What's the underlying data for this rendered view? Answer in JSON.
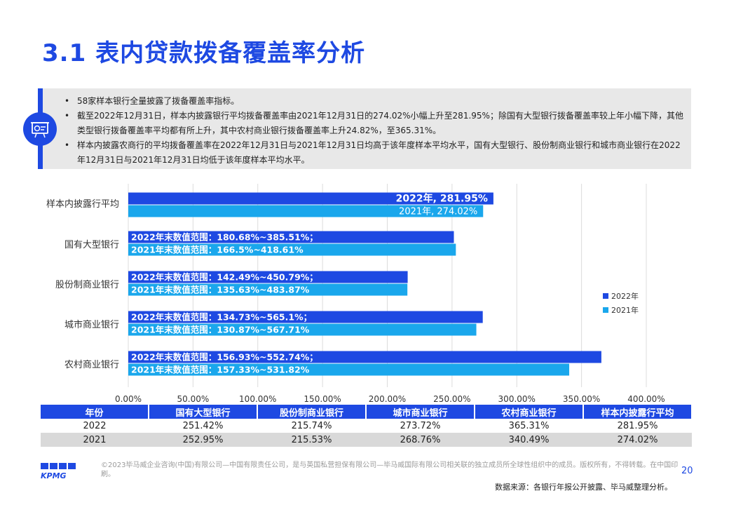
{
  "page": {
    "title": "3.1 表内贷款拨备覆盖率分析",
    "page_number": "20",
    "source": "数据来源：各银行年报公开披露、毕马威整理分析。",
    "copyright": "©2023毕马威企业咨询(中国)有限公司—中国有限责任公司，是与英国私营担保有限公司—毕马威国际有限公司相关联的独立成员所全球性组织中的成员。版权所有，不得转载。在中国印刷。",
    "logo_text": "KPMG"
  },
  "summary": {
    "bullets": [
      "58家样本银行全量披露了拨备覆盖率指标。",
      "截至2022年12月31日，样本内披露银行平均拨备覆盖率由2021年12月31日的274.02%小幅上升至281.95%；除国有大型银行拨备覆盖率较上年小幅下降，其他类型银行拨备覆盖率平均都有所上升，其中农村商业银行拨备覆盖率上升24.82%，至365.31%。",
      "样本内披露农商行的平均拨备覆盖率在2022年12月31日与2021年12月31日均高于该年度样本平均水平，国有大型银行、股份制商业银行和城市商业银行在2022年12月31日与2021年12月31日均低于该年度样本平均水平。"
    ],
    "icon": "presentation-board-icon"
  },
  "colors": {
    "accent": "#1e49e2",
    "series_2022": "#1e49e2",
    "series_2021": "#1aa7ec",
    "table_row_alt": "#d9d9d9"
  },
  "chart_data": {
    "type": "bar",
    "orientation": "horizontal",
    "categories": [
      "样本内披露行平均",
      "国有大型银行",
      "股份制商业银行",
      "城市商业银行",
      "农村商业银行"
    ],
    "series": [
      {
        "name": "2022年",
        "values": [
          281.95,
          251.42,
          215.74,
          273.72,
          365.31
        ],
        "labels": [
          "2022年, 281.95%",
          "2022年末数值范围：180.68%~385.51%；",
          "2022年末数值范围：142.49%~450.79%；",
          "2022年末数值范围：134.73%~565.1%；",
          "2022年末数值范围：156.93%~552.74%；"
        ]
      },
      {
        "name": "2021年",
        "values": [
          274.02,
          252.95,
          215.53,
          268.76,
          340.49
        ],
        "labels": [
          "2021年, 274.02%",
          "2021年末数值范围：166.5%~418.61%",
          "2021年末数值范围：135.63%~483.87%",
          "2021年末数值范围：130.87%~567.71%",
          "2021年末数值范围：157.33%~531.82%"
        ]
      }
    ],
    "x_ticks": [
      "0.00%",
      "50.00%",
      "100.00%",
      "150.00%",
      "200.00%",
      "250.00%",
      "300.00%",
      "350.00%",
      "400.00%"
    ],
    "xlim": [
      0,
      400
    ],
    "grid": true,
    "legend": "right"
  },
  "table": {
    "headers": [
      "年份",
      "国有大型银行",
      "股份制商业银行",
      "城市商业银行",
      "农村商业银行",
      "样本内披露行平均"
    ],
    "rows": [
      [
        "2022",
        "251.42%",
        "215.74%",
        "273.72%",
        "365.31%",
        "281.95%"
      ],
      [
        "2021",
        "252.95%",
        "215.53%",
        "268.76%",
        "340.49%",
        "274.02%"
      ]
    ]
  }
}
